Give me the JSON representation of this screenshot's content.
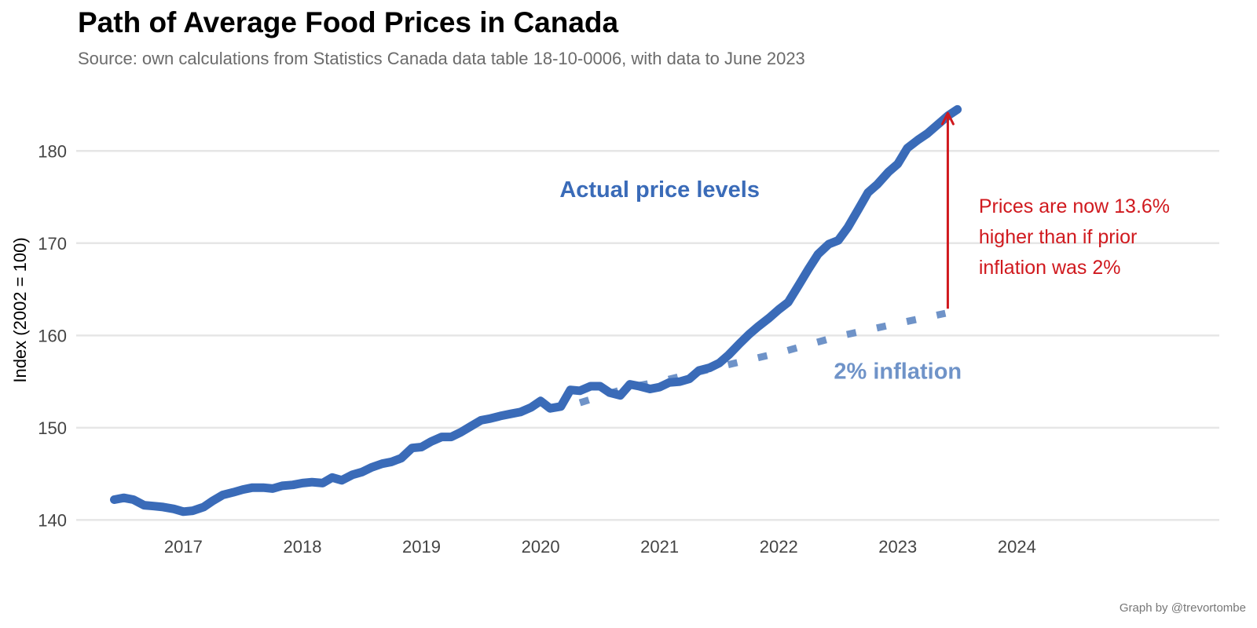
{
  "chart_data": {
    "type": "line",
    "title": "Path of Average Food Prices in Canada",
    "subtitle": "Source: own calculations from Statistics Canada data table 18-10-0006, with data to June 2023",
    "caption": "Graph by @trevortombe",
    "ylabel": "Index (2002 = 100)",
    "xlabel": "",
    "xlim": [
      2016.1,
      2025.7
    ],
    "ylim": [
      138.5,
      187
    ],
    "yticks": [
      140,
      150,
      160,
      170,
      180
    ],
    "xticks": [
      2017,
      2018,
      2019,
      2020,
      2021,
      2022,
      2023,
      2024
    ],
    "grid": true,
    "series": [
      {
        "name": "Actual price levels",
        "color": "#3a6bb8",
        "style": "solid",
        "points": [
          [
            2016.42,
            142.2
          ],
          [
            2016.5,
            142.4
          ],
          [
            2016.58,
            142.2
          ],
          [
            2016.67,
            141.6
          ],
          [
            2016.75,
            141.5
          ],
          [
            2016.83,
            141.4
          ],
          [
            2016.92,
            141.2
          ],
          [
            2017.0,
            140.9
          ],
          [
            2017.08,
            141.0
          ],
          [
            2017.17,
            141.4
          ],
          [
            2017.25,
            142.1
          ],
          [
            2017.33,
            142.7
          ],
          [
            2017.42,
            143.0
          ],
          [
            2017.5,
            143.3
          ],
          [
            2017.58,
            143.5
          ],
          [
            2017.67,
            143.5
          ],
          [
            2017.75,
            143.4
          ],
          [
            2017.83,
            143.7
          ],
          [
            2017.92,
            143.8
          ],
          [
            2018.0,
            144.0
          ],
          [
            2018.08,
            144.1
          ],
          [
            2018.17,
            144.0
          ],
          [
            2018.25,
            144.6
          ],
          [
            2018.33,
            144.3
          ],
          [
            2018.42,
            144.9
          ],
          [
            2018.5,
            145.2
          ],
          [
            2018.58,
            145.7
          ],
          [
            2018.67,
            146.1
          ],
          [
            2018.75,
            146.3
          ],
          [
            2018.83,
            146.7
          ],
          [
            2018.92,
            147.8
          ],
          [
            2019.0,
            147.9
          ],
          [
            2019.08,
            148.5
          ],
          [
            2019.17,
            149.0
          ],
          [
            2019.25,
            149.0
          ],
          [
            2019.33,
            149.5
          ],
          [
            2019.42,
            150.2
          ],
          [
            2019.5,
            150.8
          ],
          [
            2019.58,
            151.0
          ],
          [
            2019.67,
            151.3
          ],
          [
            2019.75,
            151.5
          ],
          [
            2019.83,
            151.7
          ],
          [
            2019.92,
            152.2
          ],
          [
            2020.0,
            152.9
          ],
          [
            2020.08,
            152.1
          ],
          [
            2020.17,
            152.3
          ],
          [
            2020.25,
            154.1
          ],
          [
            2020.33,
            154.0
          ],
          [
            2020.42,
            154.5
          ],
          [
            2020.5,
            154.5
          ],
          [
            2020.58,
            153.8
          ],
          [
            2020.67,
            153.5
          ],
          [
            2020.75,
            154.7
          ],
          [
            2020.83,
            154.5
          ],
          [
            2020.92,
            154.2
          ],
          [
            2021.0,
            154.4
          ],
          [
            2021.08,
            154.9
          ],
          [
            2021.17,
            155.0
          ],
          [
            2021.25,
            155.3
          ],
          [
            2021.33,
            156.2
          ],
          [
            2021.42,
            156.5
          ],
          [
            2021.5,
            157.0
          ],
          [
            2021.58,
            157.9
          ],
          [
            2021.67,
            159.1
          ],
          [
            2021.75,
            160.1
          ],
          [
            2021.83,
            161.0
          ],
          [
            2021.92,
            161.9
          ],
          [
            2022.0,
            162.8
          ],
          [
            2022.08,
            163.6
          ],
          [
            2022.17,
            165.5
          ],
          [
            2022.25,
            167.2
          ],
          [
            2022.33,
            168.8
          ],
          [
            2022.42,
            169.9
          ],
          [
            2022.5,
            170.3
          ],
          [
            2022.58,
            171.7
          ],
          [
            2022.67,
            173.7
          ],
          [
            2022.75,
            175.5
          ],
          [
            2022.83,
            176.4
          ],
          [
            2022.92,
            177.7
          ],
          [
            2023.0,
            178.6
          ],
          [
            2023.08,
            180.3
          ],
          [
            2023.17,
            181.2
          ],
          [
            2023.25,
            181.9
          ],
          [
            2023.33,
            182.8
          ],
          [
            2023.42,
            183.8
          ],
          [
            2023.5,
            184.5
          ]
        ]
      },
      {
        "name": "2% inflation",
        "color": "#6f93c8",
        "style": "dotted",
        "points": [
          [
            2020.33,
            152.7
          ],
          [
            2020.75,
            154.4
          ],
          [
            2021.0,
            155.0
          ],
          [
            2021.5,
            156.6
          ],
          [
            2022.0,
            158.1
          ],
          [
            2022.5,
            159.9
          ],
          [
            2023.0,
            161.3
          ],
          [
            2023.4,
            162.4
          ]
        ]
      }
    ],
    "annotations": [
      {
        "text": "Actual price levels",
        "x": 2021.0,
        "y": 175.0,
        "color": "#3a6bb8"
      },
      {
        "text": "2% inflation",
        "x": 2023.0,
        "y": 155.3,
        "color": "#6f93c8"
      },
      {
        "lines": [
          "Prices are now 13.6%",
          "higher than if prior",
          "inflation was 2%"
        ],
        "x": 2023.68,
        "y": 173.3,
        "color": "#d0191e"
      }
    ],
    "arrow": {
      "x": 2023.42,
      "from": 162.9,
      "to": 184.1,
      "color": "#d0191e"
    }
  }
}
